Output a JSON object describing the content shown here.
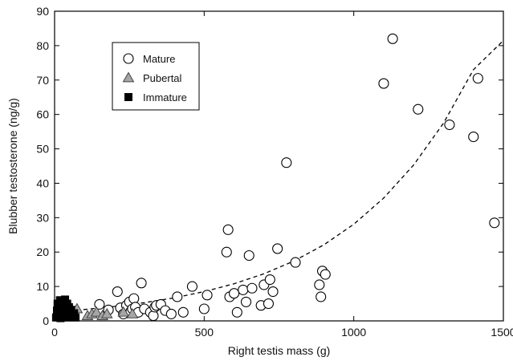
{
  "chart_data": {
    "type": "scatter",
    "xlabel": "Right testis mass (g)",
    "ylabel": "Blubber testosterone (ng/g)",
    "xlim": [
      0,
      1500
    ],
    "ylim": [
      0,
      90
    ],
    "xticks": [
      0,
      500,
      1000,
      1500
    ],
    "yticks": [
      0,
      10,
      20,
      30,
      40,
      50,
      60,
      70,
      80,
      90
    ],
    "x_tick_labels": [
      "0",
      "500",
      "1000",
      "1500"
    ],
    "y_tick_labels": [
      "0",
      "10",
      "20",
      "30",
      "40",
      "50",
      "60",
      "70",
      "80",
      "90"
    ],
    "grid": false,
    "legend_position": "top-left",
    "series": [
      {
        "name": "Mature",
        "marker": "circle-open",
        "points": [
          [
            150,
            4.8
          ],
          [
            180,
            3.2
          ],
          [
            210,
            8.5
          ],
          [
            220,
            3.8
          ],
          [
            230,
            2.0
          ],
          [
            240,
            4.5
          ],
          [
            250,
            5.5
          ],
          [
            255,
            2.8
          ],
          [
            260,
            3.5
          ],
          [
            265,
            6.5
          ],
          [
            270,
            4.0
          ],
          [
            280,
            2.5
          ],
          [
            290,
            11.0
          ],
          [
            300,
            3.5
          ],
          [
            320,
            2.5
          ],
          [
            330,
            1.5
          ],
          [
            335,
            4.0
          ],
          [
            340,
            4.5
          ],
          [
            355,
            4.8
          ],
          [
            370,
            3.0
          ],
          [
            390,
            2.0
          ],
          [
            410,
            7.0
          ],
          [
            430,
            2.5
          ],
          [
            460,
            10.0
          ],
          [
            500,
            3.5
          ],
          [
            510,
            7.5
          ],
          [
            575,
            20.0
          ],
          [
            580,
            26.5
          ],
          [
            585,
            7.0
          ],
          [
            600,
            8.0
          ],
          [
            610,
            2.5
          ],
          [
            630,
            9.0
          ],
          [
            640,
            5.5
          ],
          [
            650,
            19.0
          ],
          [
            660,
            9.5
          ],
          [
            690,
            4.5
          ],
          [
            700,
            10.5
          ],
          [
            715,
            5.0
          ],
          [
            720,
            12.0
          ],
          [
            730,
            8.5
          ],
          [
            745,
            21.0
          ],
          [
            775,
            46.0
          ],
          [
            805,
            17.0
          ],
          [
            885,
            10.5
          ],
          [
            890,
            7.0
          ],
          [
            895,
            14.5
          ],
          [
            905,
            13.5
          ],
          [
            1100,
            69.0
          ],
          [
            1130,
            82.0
          ],
          [
            1215,
            61.5
          ],
          [
            1320,
            57.0
          ],
          [
            1400,
            53.5
          ],
          [
            1415,
            70.5
          ],
          [
            1470,
            28.5
          ]
        ]
      },
      {
        "name": "Pubertal",
        "marker": "triangle",
        "points": [
          [
            75,
            3.5
          ],
          [
            110,
            1.5
          ],
          [
            125,
            2.0
          ],
          [
            140,
            2.5
          ],
          [
            160,
            1.5
          ],
          [
            175,
            2.0
          ],
          [
            230,
            2.5
          ],
          [
            260,
            2.0
          ]
        ]
      },
      {
        "name": "Immature",
        "marker": "square-filled",
        "points": [
          [
            5,
            1.0
          ],
          [
            8,
            3.0
          ],
          [
            10,
            5.0
          ],
          [
            12,
            2.0
          ],
          [
            15,
            4.0
          ],
          [
            18,
            6.0
          ],
          [
            20,
            0.8
          ],
          [
            22,
            3.5
          ],
          [
            25,
            5.5
          ],
          [
            28,
            2.5
          ],
          [
            30,
            1.5
          ],
          [
            32,
            4.5
          ],
          [
            35,
            6.2
          ],
          [
            38,
            3.0
          ],
          [
            40,
            2.0
          ],
          [
            42,
            5.0
          ],
          [
            45,
            1.0
          ],
          [
            48,
            4.0
          ],
          [
            50,
            2.8
          ],
          [
            55,
            3.2
          ],
          [
            60,
            1.5
          ],
          [
            65,
            2.2
          ],
          [
            70,
            1.0
          ]
        ]
      }
    ],
    "trend_line": {
      "style": "dashed",
      "points": [
        [
          0,
          2.6
        ],
        [
          100,
          3.3
        ],
        [
          200,
          4.2
        ],
        [
          300,
          5.3
        ],
        [
          400,
          6.7
        ],
        [
          500,
          8.5
        ],
        [
          600,
          10.8
        ],
        [
          700,
          13.7
        ],
        [
          800,
          17.4
        ],
        [
          900,
          22.1
        ],
        [
          1000,
          28.1
        ],
        [
          1100,
          35.7
        ],
        [
          1200,
          45.3
        ],
        [
          1300,
          57.5
        ],
        [
          1400,
          73.0
        ],
        [
          1500,
          81.5
        ]
      ]
    },
    "colors": {
      "axis": "#000000",
      "mature_stroke": "#000000",
      "pubertal_fill": "#a6a6a6",
      "immature_fill": "#000000",
      "trend": "#000000"
    }
  }
}
